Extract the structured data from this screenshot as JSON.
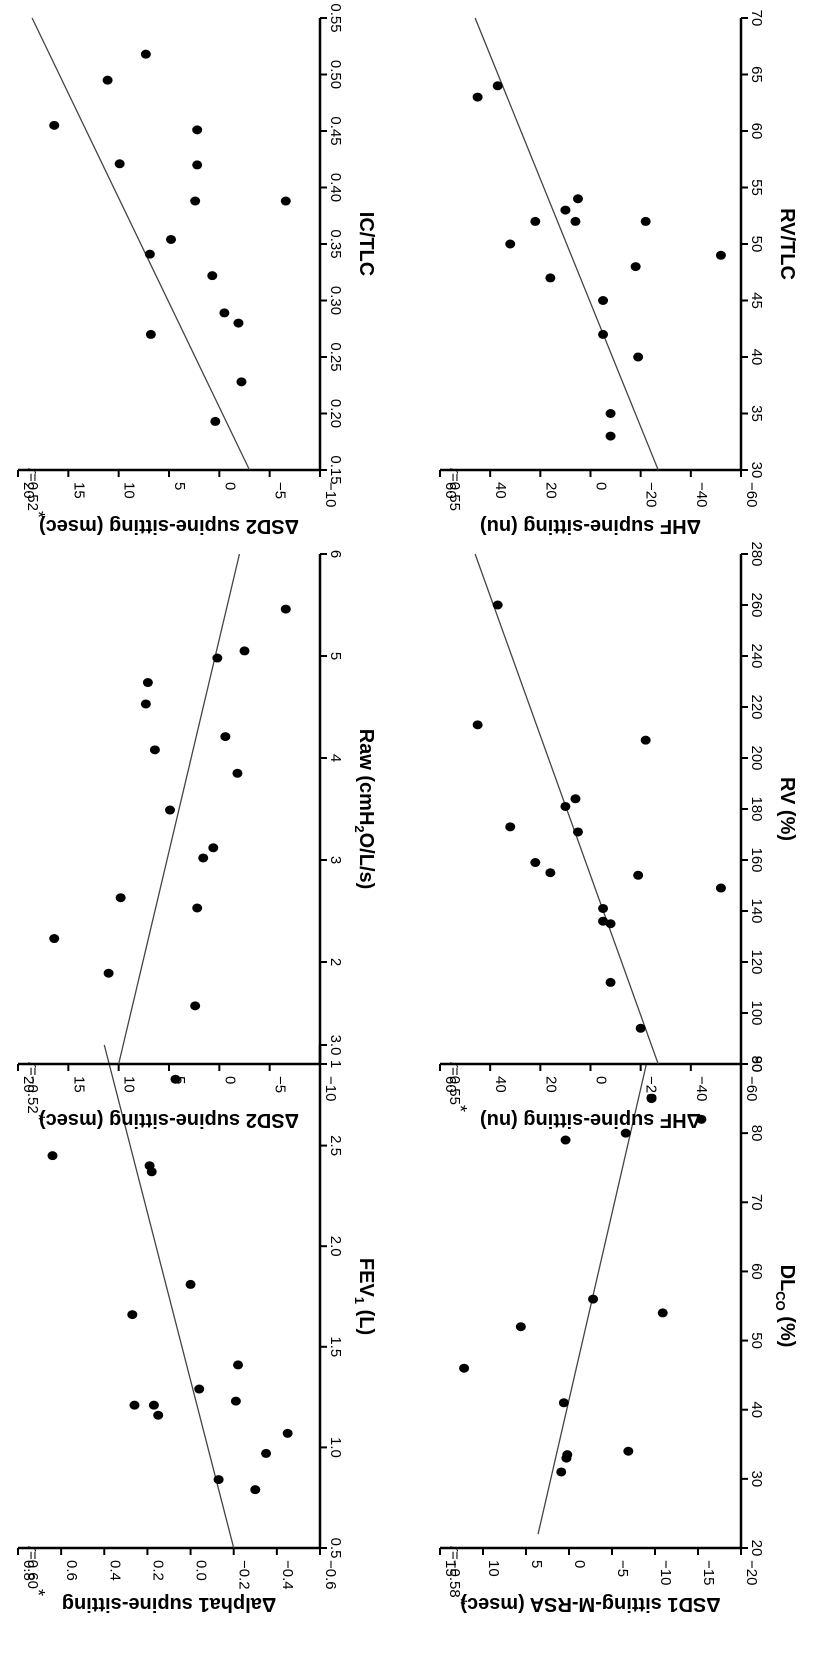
{
  "chart_data": [
    {
      "type": "scatter",
      "xlabel": "FEV1 (L)",
      "xlabel_main": "FEV",
      "xlabel_sub": "1",
      "xlabel_tail": " (L)",
      "ylabel": "Δalpha1 supine-sitting",
      "annotation_r": "r",
      "annotation_val": "=0.60",
      "annotation_star": "*",
      "xlim": [
        0.5,
        3.0
      ],
      "ylim": [
        -0.6,
        0.8
      ],
      "xticks": [
        "0.5",
        "1.0",
        "1.5",
        "2.0",
        "2.5",
        "3.0"
      ],
      "xtick_values": [
        0.5,
        1.0,
        1.5,
        2.0,
        2.5,
        3.0
      ],
      "yticks": [
        "0.8",
        "0.6",
        "0.4",
        "0.2",
        "0.0",
        "−0.2",
        "−0.4",
        "−0.6"
      ],
      "ytick_values": [
        0.8,
        0.6,
        0.4,
        0.2,
        0.0,
        -0.2,
        -0.4,
        -0.6
      ],
      "points": [
        [
          0.84,
          -0.13
        ],
        [
          0.79,
          -0.3
        ],
        [
          0.97,
          -0.35
        ],
        [
          1.07,
          -0.45
        ],
        [
          1.16,
          0.15
        ],
        [
          1.21,
          0.26
        ],
        [
          1.21,
          0.17
        ],
        [
          1.23,
          -0.21
        ],
        [
          1.29,
          -0.04
        ],
        [
          1.41,
          -0.22
        ],
        [
          1.66,
          0.27
        ],
        [
          1.81,
          0.0
        ],
        [
          2.37,
          0.18
        ],
        [
          2.4,
          0.19
        ],
        [
          2.45,
          0.64
        ],
        [
          2.83,
          0.07
        ]
      ],
      "fit_line": [
        [
          0.5,
          -0.2
        ],
        [
          3.0,
          0.4
        ]
      ]
    },
    {
      "type": "scatter",
      "xlabel": "Raw (cmH2O/L/s)",
      "xlabel_main": "Raw (cmH",
      "xlabel_sub": "2",
      "xlabel_tail": "O/L/s)",
      "ylabel": "ΔSD2 supine-sitting (msec)",
      "annotation_r": "r",
      "annotation_val": "=−0.52",
      "annotation_star": "*",
      "xlim": [
        1,
        6
      ],
      "ylim": [
        -10,
        20
      ],
      "xticks": [
        "1",
        "2",
        "3",
        "4",
        "5",
        "6"
      ],
      "xtick_values": [
        1,
        2,
        3,
        4,
        5,
        6
      ],
      "yticks": [
        "20",
        "15",
        "10",
        "5",
        "0",
        "−5",
        "−10"
      ],
      "ytick_values": [
        20,
        15,
        10,
        5,
        0,
        -5,
        -10
      ],
      "points": [
        [
          1.57,
          2.4
        ],
        [
          1.89,
          11.0
        ],
        [
          2.23,
          16.4
        ],
        [
          2.53,
          2.2
        ],
        [
          2.63,
          9.8
        ],
        [
          3.02,
          1.6
        ],
        [
          3.12,
          0.6
        ],
        [
          3.49,
          4.9
        ],
        [
          3.85,
          -1.8
        ],
        [
          4.08,
          6.4
        ],
        [
          4.21,
          -0.6
        ],
        [
          4.53,
          7.3
        ],
        [
          4.74,
          7.1
        ],
        [
          4.98,
          0.2
        ],
        [
          5.05,
          -2.5
        ],
        [
          5.46,
          -6.6
        ]
      ],
      "fit_line": [
        [
          1.0,
          10.0
        ],
        [
          6.0,
          -2.0
        ]
      ]
    },
    {
      "type": "scatter",
      "xlabel": "IC/TLC",
      "ylabel": "ΔSD2 supine-sitting (msec)",
      "annotation_r": "r",
      "annotation_val": "=0.52",
      "annotation_star": "*",
      "xlim": [
        0.15,
        0.55
      ],
      "ylim": [
        -10,
        20
      ],
      "xticks": [
        "0.15",
        "0.20",
        "0.25",
        "0.30",
        "0.35",
        "0.40",
        "0.45",
        "0.50",
        "0.55"
      ],
      "xtick_values": [
        0.15,
        0.2,
        0.25,
        0.3,
        0.35,
        0.4,
        0.45,
        0.5,
        0.55
      ],
      "yticks": [
        "20",
        "15",
        "10",
        "5",
        "0",
        "−5",
        "−10"
      ],
      "ytick_values": [
        20,
        15,
        10,
        5,
        0,
        -5,
        -10
      ],
      "points": [
        [
          0.193,
          0.4
        ],
        [
          0.228,
          -2.2
        ],
        [
          0.27,
          6.8
        ],
        [
          0.28,
          -1.9
        ],
        [
          0.289,
          -0.5
        ],
        [
          0.322,
          0.7
        ],
        [
          0.341,
          6.9
        ],
        [
          0.354,
          4.8
        ],
        [
          0.388,
          2.4
        ],
        [
          0.388,
          -6.6
        ],
        [
          0.42,
          2.2
        ],
        [
          0.421,
          9.9
        ],
        [
          0.451,
          2.2
        ],
        [
          0.455,
          16.4
        ],
        [
          0.495,
          11.1
        ],
        [
          0.518,
          7.3
        ]
      ],
      "fit_line": [
        [
          0.15,
          -3.0
        ],
        [
          0.55,
          18.6
        ]
      ]
    },
    {
      "type": "scatter",
      "xlabel": "DLCO (%)",
      "xlabel_main": "DL",
      "xlabel_sub": "CO",
      "xlabel_tail": " (%)",
      "ylabel": "ΔSD1 sitting-M-RSA (msec)",
      "annotation_r": "r",
      "annotation_val": "=−0.58",
      "annotation_star": "*",
      "xlim": [
        20,
        90
      ],
      "ylim": [
        -20,
        15
      ],
      "xticks": [
        "20",
        "30",
        "40",
        "50",
        "60",
        "70",
        "80",
        "90"
      ],
      "xtick_values": [
        20,
        30,
        40,
        50,
        60,
        70,
        80,
        90
      ],
      "yticks": [
        "15",
        "10",
        "5",
        "0",
        "−5",
        "−10",
        "−15",
        "−20"
      ],
      "ytick_values": [
        15,
        10,
        5,
        0,
        -5,
        -10,
        -15,
        -20
      ],
      "points": [
        [
          31,
          0.9
        ],
        [
          33,
          0.3
        ],
        [
          33.5,
          0.2
        ],
        [
          34,
          -6.9
        ],
        [
          41,
          0.6
        ],
        [
          46,
          12.2
        ],
        [
          52,
          5.6
        ],
        [
          54,
          -10.9
        ],
        [
          56,
          -2.8
        ],
        [
          79,
          0.4
        ],
        [
          80,
          -6.6
        ],
        [
          82,
          -15.4
        ],
        [
          85,
          -9.6
        ]
      ],
      "fit_line": [
        [
          22,
          3.6
        ],
        [
          90,
          -9.0
        ]
      ]
    },
    {
      "type": "scatter",
      "xlabel": "RV (%)",
      "ylabel": "ΔHF supine-sitting (nu)",
      "annotation_r": "r",
      "annotation_val": "=0.55",
      "annotation_star": "*",
      "xlim": [
        80,
        280
      ],
      "ylim": [
        -60,
        60
      ],
      "xticks": [
        "80",
        "100",
        "120",
        "140",
        "160",
        "180",
        "200",
        "220",
        "240",
        "260",
        "280"
      ],
      "xtick_values": [
        80,
        100,
        120,
        140,
        160,
        180,
        200,
        220,
        240,
        260,
        280
      ],
      "yticks": [
        "60",
        "40",
        "20",
        "0",
        "−20",
        "−40",
        "−60"
      ],
      "ytick_values": [
        60,
        40,
        20,
        0,
        -20,
        -40,
        -60
      ],
      "points": [
        [
          94,
          -20
        ],
        [
          112,
          -8
        ],
        [
          135,
          -8
        ],
        [
          136,
          -5
        ],
        [
          141,
          -5
        ],
        [
          149,
          -52
        ],
        [
          154,
          -19
        ],
        [
          155,
          16
        ],
        [
          159,
          22
        ],
        [
          171,
          5
        ],
        [
          173,
          32
        ],
        [
          181,
          10
        ],
        [
          184,
          6
        ],
        [
          207,
          -22
        ],
        [
          213,
          45
        ],
        [
          260,
          37
        ]
      ],
      "fit_line": [
        [
          80,
          -27
        ],
        [
          280,
          46
        ]
      ]
    },
    {
      "type": "scatter",
      "xlabel": "RV/TLC",
      "ylabel": "ΔHF supine-sitting (nu)",
      "annotation_r": "r",
      "annotation_val": "=0.55",
      "annotation_star": "",
      "xlim": [
        30,
        70
      ],
      "ylim": [
        -60,
        60
      ],
      "xticks": [
        "30",
        "35",
        "40",
        "45",
        "50",
        "55",
        "60",
        "65",
        "70"
      ],
      "xtick_values": [
        30,
        35,
        40,
        45,
        50,
        55,
        60,
        65,
        70
      ],
      "yticks": [
        "60",
        "40",
        "20",
        "0",
        "−20",
        "−40",
        "−60"
      ],
      "ytick_values": [
        60,
        40,
        20,
        0,
        -20,
        -40,
        -60
      ],
      "points": [
        [
          33,
          -8
        ],
        [
          35,
          -8
        ],
        [
          40,
          -19
        ],
        [
          42,
          -5
        ],
        [
          45,
          -5
        ],
        [
          47,
          16
        ],
        [
          48,
          -18
        ],
        [
          49,
          -52
        ],
        [
          50,
          32
        ],
        [
          52,
          22
        ],
        [
          52,
          -22
        ],
        [
          52,
          6
        ],
        [
          53,
          10
        ],
        [
          54,
          5
        ],
        [
          63,
          45
        ],
        [
          64,
          37
        ]
      ],
      "fit_line": [
        [
          30,
          -27
        ],
        [
          70,
          46
        ]
      ]
    }
  ]
}
